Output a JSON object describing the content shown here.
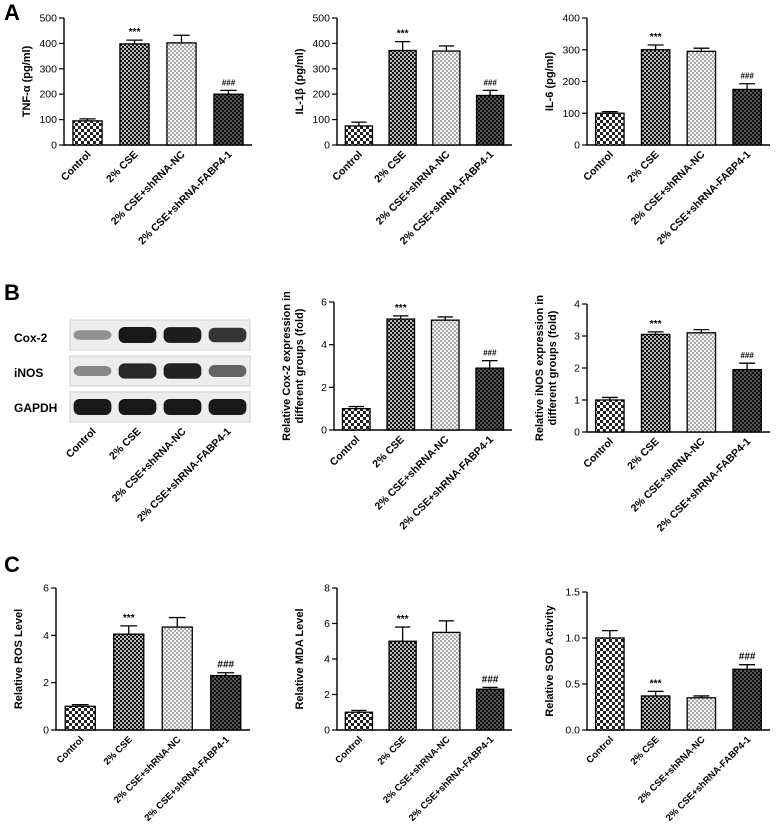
{
  "panels": [
    {
      "letter": "A"
    },
    {
      "letter": "B"
    },
    {
      "letter": "C"
    }
  ],
  "western_blot": {
    "rows": [
      "Cox-2",
      "iNOS",
      "GAPDH"
    ],
    "lanes": [
      "Control",
      "2% CSE",
      "2% CSE+shRNA-NC",
      "2% CSE+shRNA-FABP4-1"
    ]
  },
  "chart_data": [
    {
      "type": "bar",
      "id": "tnf",
      "categories": [
        "Control",
        "2% CSE",
        "2% CSE+shRNA-NC",
        "2% CSE+shRNA-FABP4-1"
      ],
      "values": [
        95,
        398,
        402,
        200
      ],
      "errors": [
        8,
        15,
        30,
        15
      ],
      "ylabel": "TNF-α (pg/ml)",
      "ylim": [
        0,
        500
      ],
      "ticks": [
        0,
        100,
        200,
        300,
        400,
        500
      ],
      "annotations": [
        "",
        "***",
        "",
        "###"
      ]
    },
    {
      "type": "bar",
      "id": "il1b",
      "categories": [
        "Control",
        "2% CSE",
        "2% CSE+shRNA-NC",
        "2% CSE+shRNA-FABP4-1"
      ],
      "values": [
        75,
        372,
        370,
        195
      ],
      "errors": [
        15,
        35,
        20,
        20
      ],
      "ylabel": "IL-1β (pg/ml)",
      "ylim": [
        0,
        500
      ],
      "ticks": [
        0,
        100,
        200,
        300,
        400,
        500
      ],
      "annotations": [
        "",
        "***",
        "",
        "###"
      ]
    },
    {
      "type": "bar",
      "id": "il6",
      "categories": [
        "Control",
        "2% CSE",
        "2% CSE+shRNA-NC",
        "2% CSE+shRNA-FABP4-1"
      ],
      "values": [
        100,
        300,
        295,
        175
      ],
      "errors": [
        5,
        15,
        10,
        18
      ],
      "ylabel": "IL-6 (pg/ml)",
      "ylim": [
        0,
        400
      ],
      "ticks": [
        0,
        100,
        200,
        300,
        400
      ],
      "annotations": [
        "",
        "***",
        "",
        "###"
      ]
    },
    {
      "type": "bar",
      "id": "cox2",
      "categories": [
        "Control",
        "2% CSE",
        "2% CSE+shRNA-NC",
        "2% CSE+shRNA-FABP4-1"
      ],
      "values": [
        1.0,
        5.2,
        5.15,
        2.9
      ],
      "errors": [
        0.1,
        0.15,
        0.15,
        0.35
      ],
      "ylabel": [
        "Relative Cox-2 expression in",
        "different groups (fold)"
      ],
      "ylim": [
        0,
        6
      ],
      "ticks": [
        0,
        2,
        4,
        6
      ],
      "annotations": [
        "",
        "***",
        "",
        "###"
      ]
    },
    {
      "type": "bar",
      "id": "inos",
      "categories": [
        "Control",
        "2% CSE",
        "2% CSE+shRNA-NC",
        "2% CSE+shRNA-FABP4-1"
      ],
      "values": [
        1.0,
        3.05,
        3.1,
        1.95
      ],
      "errors": [
        0.08,
        0.08,
        0.1,
        0.2
      ],
      "ylabel": [
        "Relative iNOS expression in",
        "different groups (fold)"
      ],
      "ylim": [
        0,
        4
      ],
      "ticks": [
        0,
        1,
        2,
        3,
        4
      ],
      "annotations": [
        "",
        "***",
        "",
        "###"
      ]
    },
    {
      "type": "bar",
      "id": "ros",
      "categories": [
        "Control",
        "2% CSE",
        "2% CSE+shRNA-NC",
        "2% CSE+shRNA-FABP4-1"
      ],
      "values": [
        1.0,
        4.05,
        4.35,
        2.3
      ],
      "errors": [
        0.07,
        0.35,
        0.4,
        0.12
      ],
      "ylabel": "Relative ROS Level",
      "ylim": [
        0,
        6
      ],
      "ticks": [
        0,
        2,
        4,
        6
      ],
      "annotations": [
        "",
        "***",
        "",
        "###"
      ]
    },
    {
      "type": "bar",
      "id": "mda",
      "categories": [
        "Control",
        "2% CSE",
        "2% CSE+shRNA-NC",
        "2% CSE+shRNA-FABP4-1"
      ],
      "values": [
        1.0,
        5.0,
        5.5,
        2.3
      ],
      "errors": [
        0.1,
        0.8,
        0.65,
        0.1
      ],
      "ylabel": "Relative MDA Level",
      "ylim": [
        0,
        8
      ],
      "ticks": [
        0,
        2,
        4,
        6,
        8
      ],
      "annotations": [
        "",
        "***",
        "",
        "###"
      ]
    },
    {
      "type": "bar",
      "id": "sod",
      "categories": [
        "Control",
        "2% CSE",
        "2% CSE+shRNA-NC",
        "2% CSE+shRNA-FABP4-1"
      ],
      "values": [
        1.0,
        0.37,
        0.35,
        0.66
      ],
      "errors": [
        0.08,
        0.05,
        0.02,
        0.05
      ],
      "ylabel": "Relative SOD Activity",
      "ylim": [
        0,
        1.5
      ],
      "ticks": [
        0,
        0.5,
        1.0,
        1.5
      ],
      "annotations": [
        "",
        "***",
        "",
        "###"
      ]
    }
  ]
}
